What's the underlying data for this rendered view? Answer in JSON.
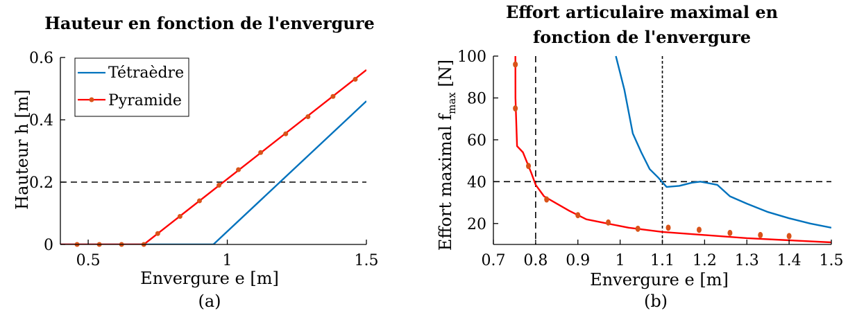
{
  "chart_data": [
    {
      "type": "line",
      "title": "Hauteur en fonction de l'envergure",
      "xlabel": "Envergure e [m]",
      "ylabel": "Hauteur h [m]",
      "caption": "(a)",
      "xlim": [
        0.4,
        1.5
      ],
      "ylim": [
        0,
        0.6
      ],
      "xticks": [
        0.5,
        1,
        1.5
      ],
      "xtick_labels": [
        "0.5",
        "1",
        "1.5"
      ],
      "yticks": [
        0,
        0.2,
        0.4,
        0.6
      ],
      "ytick_labels": [
        "0",
        "0.2",
        "0.4",
        "0.6"
      ],
      "legend_position": "top-left",
      "reference_lines": [
        {
          "axis": "y",
          "value": 0.2
        }
      ],
      "series": [
        {
          "name": "Tétraèdre",
          "color": "#0072BD",
          "marker": "none",
          "x": [
            0.4,
            0.95,
            1.5
          ],
          "y": [
            0,
            0,
            0.46
          ]
        },
        {
          "name": "Pyramide",
          "color": "#FF0000",
          "marker": "dot",
          "marker_color": "#D95319",
          "x": [
            0.4,
            0.7,
            1.5
          ],
          "y": [
            0,
            0,
            0.56
          ],
          "markers": {
            "x": [
              0.46,
              0.54,
              0.62,
              0.7,
              0.75,
              0.83,
              0.9,
              0.97,
              1.04,
              1.12,
              1.21,
              1.29,
              1.38,
              1.46
            ],
            "y": [
              0,
              0,
              0,
              0,
              0.035,
              0.09,
              0.14,
              0.19,
              0.24,
              0.295,
              0.355,
              0.41,
              0.475,
              0.53
            ]
          }
        }
      ]
    },
    {
      "type": "line",
      "title_lines": [
        "Effort articulaire maximal en",
        "fonction de l'envergure"
      ],
      "xlabel": "Envergure e [m]",
      "ylabel_parts": {
        "before": "Effort maximal f",
        "subscript": "max",
        "after": " [N]"
      },
      "caption": "(b)",
      "xlim": [
        0.7,
        1.5
      ],
      "ylim": [
        10,
        100
      ],
      "xticks": [
        0.7,
        0.8,
        0.9,
        1.0,
        1.1,
        1.2,
        1.3,
        1.4,
        1.5
      ],
      "xtick_labels": [
        "0.7",
        "0.8",
        "0.9",
        "1",
        "1.1",
        "1.2",
        "1.3",
        "1.4",
        "1.5"
      ],
      "yticks": [
        20,
        40,
        60,
        80,
        100
      ],
      "ytick_labels": [
        "20",
        "40",
        "60",
        "80",
        "100"
      ],
      "reference_lines": [
        {
          "axis": "y",
          "value": 40,
          "dash": "long"
        },
        {
          "axis": "x",
          "value": 0.8,
          "dash": "long"
        },
        {
          "axis": "x",
          "value": 1.1,
          "dash": "short"
        }
      ],
      "series": [
        {
          "color": "#0072BD",
          "marker": "none",
          "x": [
            0.99,
            1.01,
            1.03,
            1.05,
            1.07,
            1.09,
            1.11,
            1.14,
            1.17,
            1.19,
            1.23,
            1.26,
            1.3,
            1.35,
            1.4,
            1.45,
            1.5
          ],
          "y": [
            100,
            84,
            63,
            54,
            46,
            42,
            37.5,
            38,
            39.5,
            40,
            38.5,
            33,
            29.5,
            25.5,
            22.5,
            20,
            18
          ]
        },
        {
          "color": "#FF0000",
          "marker": "none",
          "x": [
            0.752,
            0.7522,
            0.756,
            0.77,
            0.79,
            0.8,
            0.82,
            0.85,
            0.88,
            0.92,
            0.97,
            1.02,
            1.1,
            1.2,
            1.3,
            1.4,
            1.5
          ],
          "y": [
            100,
            80,
            57,
            54,
            44,
            38.5,
            33,
            29.5,
            26,
            22,
            20,
            18,
            16,
            14.5,
            13,
            12,
            11
          ]
        },
        {
          "color": "#D95319",
          "marker": "dot-only",
          "x": [
            0.752,
            0.752,
            0.783,
            0.826,
            0.9,
            0.972,
            1.042,
            1.114,
            1.187,
            1.26,
            1.332,
            1.4
          ],
          "y": [
            96,
            75,
            47.5,
            31.5,
            24,
            20.5,
            17.5,
            18,
            17,
            15.5,
            14.5,
            14
          ]
        }
      ]
    }
  ]
}
